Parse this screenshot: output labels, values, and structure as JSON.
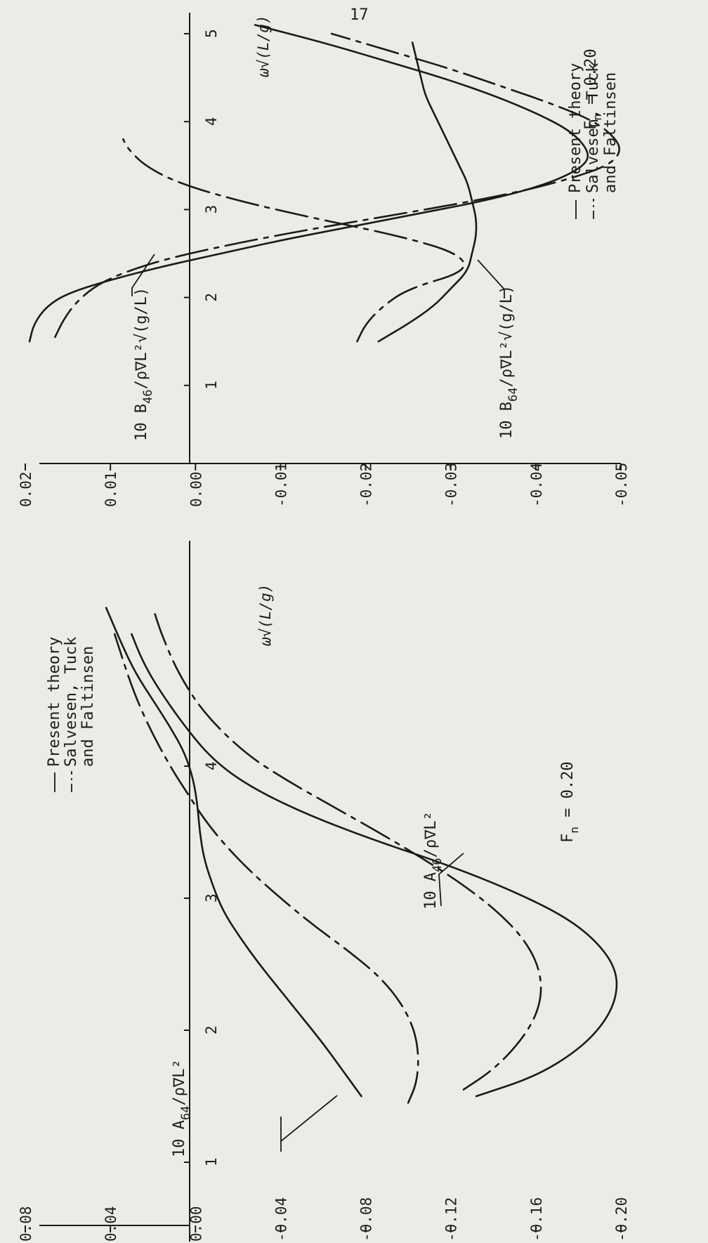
{
  "page_number": "17",
  "chart_data": [
    {
      "type": "line",
      "panel": "A",
      "xlabel": "ω√(L/g)",
      "ylim": [
        -0.2,
        0.08
      ],
      "xlim": [
        0,
        5.3
      ],
      "y_ticks": [
        "0.08",
        "0.04",
        "0.00",
        "-0.04",
        "-0.08",
        "-0.12",
        "-0.16",
        "-0.20"
      ],
      "x_ticks": [
        "1",
        "2",
        "3",
        "4"
      ],
      "legend": {
        "position": "top",
        "solid": "Present theory",
        "dashed_line1": "Salvesen, Tuck",
        "dashed_line2": "and Faltinsen"
      },
      "froude_label": "F",
      "froude_sub": "n",
      "froude_value": " = 0.20",
      "annotations": [
        {
          "main": "10 A",
          "sub": "64",
          "rest": "/ρ∇L²"
        },
        {
          "main": "10 A",
          "sub": "46",
          "rest": "/ρ∇L²"
        }
      ],
      "series": [
        {
          "style": "solid",
          "x": [
            1.5,
            1.7,
            1.9,
            2.1,
            2.3,
            2.5,
            2.7,
            2.9,
            3.1,
            3.3,
            3.5,
            3.7,
            3.9,
            4.1,
            4.3,
            4.5,
            4.7,
            4.9,
            5.2
          ],
          "y": [
            -0.078,
            -0.069,
            -0.06,
            -0.05,
            -0.04,
            -0.03,
            -0.021,
            -0.013,
            -0.008,
            -0.004,
            -0.002,
            -0.001,
            0.001,
            0.005,
            0.012,
            0.02,
            0.028,
            0.034,
            0.042
          ]
        },
        {
          "style": "dashed",
          "x": [
            1.45,
            1.6,
            1.8,
            2.0,
            2.2,
            2.4,
            2.6,
            2.8,
            3.0,
            3.2,
            3.4,
            3.6,
            3.8,
            4.0,
            4.3,
            4.6,
            5.0
          ],
          "y": [
            -0.1,
            -0.104,
            -0.105,
            -0.103,
            -0.097,
            -0.087,
            -0.072,
            -0.055,
            -0.04,
            -0.026,
            -0.014,
            -0.004,
            0.004,
            0.012,
            0.022,
            0.03,
            0.038
          ]
        },
        {
          "style": "dashed",
          "x": [
            1.55,
            1.7,
            1.9,
            2.1,
            2.3,
            2.5,
            2.7,
            2.9,
            3.1,
            3.3,
            3.5,
            3.7,
            3.9,
            4.1,
            4.4,
            4.7,
            5.0,
            5.2
          ],
          "y": [
            -0.126,
            -0.14,
            -0.152,
            -0.16,
            -0.163,
            -0.161,
            -0.154,
            -0.142,
            -0.126,
            -0.107,
            -0.086,
            -0.064,
            -0.042,
            -0.023,
            -0.004,
            0.008,
            0.016,
            0.02
          ]
        },
        {
          "style": "solid",
          "x": [
            1.5,
            1.65,
            1.85,
            2.05,
            2.25,
            2.45,
            2.65,
            2.85,
            3.05,
            3.25,
            3.45,
            3.65,
            3.85,
            4.05,
            4.3,
            4.6,
            4.8,
            5.0
          ],
          "y": [
            -0.132,
            -0.16,
            -0.18,
            -0.192,
            -0.198,
            -0.198,
            -0.19,
            -0.175,
            -0.15,
            -0.119,
            -0.082,
            -0.05,
            -0.025,
            -0.008,
            0.005,
            0.018,
            0.025,
            0.03
          ]
        }
      ]
    },
    {
      "type": "line",
      "panel": "B",
      "xlabel": "ω√(L/g)",
      "ylim": [
        -0.05,
        0.02
      ],
      "xlim": [
        0,
        5.3
      ],
      "y_ticks": [
        "0.02",
        "0.01",
        "0.00",
        "-0.01",
        "-0.02",
        "-0.03",
        "-0.04",
        "-0.05"
      ],
      "x_ticks": [
        "1",
        "2",
        "3",
        "4",
        "5"
      ],
      "legend": {
        "position": "top",
        "solid": "Present theory",
        "dashed_line1": "Salvesen, Tuck",
        "dashed_line2": "and Faltinsen"
      },
      "froude_label": "F",
      "froude_sub": "n",
      "froude_value": " = 0.20",
      "annotations": [
        {
          "main": "10 B",
          "sub": "46",
          "rest": "/ρ∇L²√(g/L)"
        },
        {
          "main": "10 B",
          "sub": "64",
          "rest": "/ρ∇L²√(g/L)"
        }
      ],
      "series": [
        {
          "style": "solid",
          "x": [
            1.5,
            1.7,
            1.9,
            2.05,
            2.2,
            2.35,
            2.5,
            2.65,
            2.8,
            2.95,
            3.1,
            3.25,
            3.4,
            3.55,
            3.7,
            3.9,
            4.1,
            4.3,
            4.5,
            4.7,
            4.9,
            5.1
          ],
          "y": [
            0.0195,
            0.019,
            0.0175,
            0.015,
            0.01,
            0.004,
            -0.003,
            -0.01,
            -0.018,
            -0.026,
            -0.034,
            -0.04,
            -0.044,
            -0.0462,
            -0.046,
            -0.044,
            -0.04,
            -0.035,
            -0.029,
            -0.022,
            -0.015,
            -0.007
          ]
        },
        {
          "style": "dashed",
          "x": [
            1.55,
            1.75,
            1.95,
            2.15,
            2.3,
            2.45,
            2.6,
            2.75,
            2.9,
            3.05,
            3.2,
            3.35,
            3.5,
            3.65,
            3.8,
            4.0,
            4.2,
            4.4,
            4.6,
            4.8,
            5.0
          ],
          "y": [
            0.0165,
            0.0155,
            0.014,
            0.0115,
            0.008,
            0.003,
            -0.004,
            -0.012,
            -0.021,
            -0.03,
            -0.038,
            -0.044,
            -0.0485,
            -0.05,
            -0.0495,
            -0.047,
            -0.042,
            -0.036,
            -0.03,
            -0.023,
            -0.016
          ]
        },
        {
          "style": "dashed",
          "x": [
            1.5,
            1.7,
            1.9,
            2.1,
            2.3,
            2.5,
            2.7,
            2.9,
            3.1,
            3.3,
            3.5,
            3.7,
            3.8
          ],
          "y": [
            -0.019,
            -0.02,
            -0.022,
            -0.025,
            -0.032,
            -0.031,
            -0.024,
            -0.014,
            -0.005,
            0.002,
            0.006,
            0.008,
            0.0085
          ]
        },
        {
          "style": "solid",
          "x": [
            1.5,
            1.7,
            1.9,
            2.1,
            2.3,
            2.5,
            2.7,
            2.9,
            3.1,
            3.3,
            3.5,
            3.7,
            3.9,
            4.1,
            4.3,
            4.5,
            4.7,
            4.9
          ],
          "y": [
            -0.0215,
            -0.025,
            -0.028,
            -0.03,
            -0.032,
            -0.0325,
            -0.033,
            -0.033,
            -0.0325,
            -0.032,
            -0.031,
            -0.03,
            -0.029,
            -0.028,
            -0.027,
            -0.0265,
            -0.026,
            -0.0255
          ]
        }
      ]
    }
  ]
}
